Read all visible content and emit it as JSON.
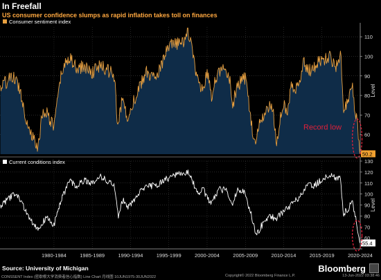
{
  "title": "In Freefall",
  "subtitle": "US consumer confidence slumps as rapid inflation takes toll on finances",
  "source": "Source: University of Michigan",
  "brand": "Bloomberg",
  "footer": {
    "left": "CONSSENT Index (密歇根大学消费者信心指数) Line Chart  月线图  10JUN1975-30JUN2022",
    "mid": "Copyright© 2022 Bloomberg Finance L.P.",
    "right": "13-Jun-2022 03:38:46"
  },
  "colors": {
    "top_line": "#e8a040",
    "top_fill": "#0f2c48",
    "bottom_line": "#ffffff",
    "annotation": "#e0203a",
    "label_bg": "#f0a030"
  },
  "chart_data": [
    {
      "type": "area",
      "legend": "Consumer sentiment index",
      "ylabel": "Level",
      "ylim": [
        50,
        115
      ],
      "yticks": [
        60,
        70,
        80,
        90,
        100,
        110
      ],
      "x_tick_labels": [
        "1980-1984",
        "1985-1989",
        "1990-1994",
        "1995-1999",
        "2000-2004",
        "2005-2009",
        "2010-2014",
        "2015-2019",
        "2020-2024"
      ],
      "x_range": [
        1975.45,
        2022.5
      ],
      "last_value_label": "50.2",
      "annotation": "Record low",
      "anchors": [
        [
          1975.5,
          84
        ],
        [
          1976.5,
          88
        ],
        [
          1977.3,
          89
        ],
        [
          1978.0,
          84
        ],
        [
          1979.0,
          66
        ],
        [
          1980.4,
          52
        ],
        [
          1980.9,
          70
        ],
        [
          1981.5,
          72
        ],
        [
          1982.4,
          64
        ],
        [
          1982.9,
          75
        ],
        [
          1983.5,
          92
        ],
        [
          1984.5,
          100
        ],
        [
          1985.5,
          93
        ],
        [
          1986.3,
          95
        ],
        [
          1987.5,
          92
        ],
        [
          1988.5,
          95
        ],
        [
          1989.5,
          93
        ],
        [
          1990.4,
          90
        ],
        [
          1990.8,
          63
        ],
        [
          1991.5,
          80
        ],
        [
          1992.0,
          68
        ],
        [
          1992.6,
          75
        ],
        [
          1993.3,
          80
        ],
        [
          1994.5,
          92
        ],
        [
          1995.5,
          89
        ],
        [
          1996.5,
          95
        ],
        [
          1997.5,
          105
        ],
        [
          1998.5,
          106
        ],
        [
          1999.5,
          108
        ],
        [
          2000.0,
          112
        ],
        [
          2000.5,
          107
        ],
        [
          2001.0,
          92
        ],
        [
          2001.8,
          82
        ],
        [
          2002.5,
          92
        ],
        [
          2003.2,
          77
        ],
        [
          2003.6,
          89
        ],
        [
          2004.5,
          94
        ],
        [
          2005.5,
          88
        ],
        [
          2005.8,
          75
        ],
        [
          2006.5,
          85
        ],
        [
          2007.5,
          89
        ],
        [
          2008.0,
          75
        ],
        [
          2008.5,
          58
        ],
        [
          2008.9,
          57
        ],
        [
          2009.5,
          68
        ],
        [
          2010.3,
          72
        ],
        [
          2011.0,
          75
        ],
        [
          2011.6,
          56
        ],
        [
          2012.3,
          75
        ],
        [
          2013.0,
          73
        ],
        [
          2013.5,
          85
        ],
        [
          2014.5,
          84
        ],
        [
          2015.0,
          98
        ],
        [
          2016.0,
          92
        ],
        [
          2017.0,
          97
        ],
        [
          2018.0,
          99
        ],
        [
          2018.5,
          100
        ],
        [
          2019.3,
          95
        ],
        [
          2020.0,
          100
        ],
        [
          2020.3,
          72
        ],
        [
          2021.0,
          80
        ],
        [
          2021.4,
          88
        ],
        [
          2021.8,
          70
        ],
        [
          2022.0,
          68
        ],
        [
          2022.3,
          59
        ],
        [
          2022.45,
          50.2
        ]
      ]
    },
    {
      "type": "line",
      "legend": "Current conditions index",
      "ylabel": "Level",
      "ylim": [
        50,
        130
      ],
      "yticks": [
        60,
        70,
        80,
        90,
        100,
        110,
        120,
        130
      ],
      "x_tick_labels": [
        "1980-1984",
        "1985-1989",
        "1990-1994",
        "1995-1999",
        "2000-2004",
        "2005-2009",
        "2010-2014",
        "2015-2019",
        "2020-2024"
      ],
      "x_range": [
        1975.45,
        2022.5
      ],
      "last_value_label": "55.4",
      "anchors": [
        [
          1975.5,
          89
        ],
        [
          1976.5,
          95
        ],
        [
          1977.5,
          101
        ],
        [
          1978.3,
          92
        ],
        [
          1979.3,
          78
        ],
        [
          1980.5,
          68
        ],
        [
          1980.9,
          73
        ],
        [
          1981.5,
          78
        ],
        [
          1982.5,
          72
        ],
        [
          1983.5,
          95
        ],
        [
          1984.5,
          112
        ],
        [
          1985.5,
          107
        ],
        [
          1986.5,
          113
        ],
        [
          1987.5,
          110
        ],
        [
          1988.5,
          116
        ],
        [
          1989.5,
          112
        ],
        [
          1990.4,
          107
        ],
        [
          1990.9,
          80
        ],
        [
          1991.5,
          96
        ],
        [
          1992.0,
          87
        ],
        [
          1993.0,
          95
        ],
        [
          1994.0,
          104
        ],
        [
          1995.0,
          107
        ],
        [
          1996.0,
          108
        ],
        [
          1997.0,
          113
        ],
        [
          1998.0,
          116
        ],
        [
          1999.0,
          118
        ],
        [
          2000.0,
          120
        ],
        [
          2000.5,
          114
        ],
        [
          2001.3,
          99
        ],
        [
          2002.0,
          104
        ],
        [
          2003.0,
          90
        ],
        [
          2004.0,
          104
        ],
        [
          2005.0,
          104
        ],
        [
          2005.8,
          90
        ],
        [
          2006.5,
          105
        ],
        [
          2007.5,
          100
        ],
        [
          2008.5,
          75
        ],
        [
          2008.9,
          62
        ],
        [
          2009.5,
          70
        ],
        [
          2010.5,
          80
        ],
        [
          2011.5,
          78
        ],
        [
          2012.5,
          84
        ],
        [
          2013.5,
          90
        ],
        [
          2014.5,
          97
        ],
        [
          2015.5,
          107
        ],
        [
          2016.5,
          108
        ],
        [
          2017.5,
          113
        ],
        [
          2018.5,
          117
        ],
        [
          2019.3,
          115
        ],
        [
          2019.9,
          116
        ],
        [
          2020.3,
          82
        ],
        [
          2021.0,
          87
        ],
        [
          2021.4,
          96
        ],
        [
          2021.9,
          78
        ],
        [
          2022.2,
          66
        ],
        [
          2022.45,
          55.4
        ]
      ]
    }
  ]
}
